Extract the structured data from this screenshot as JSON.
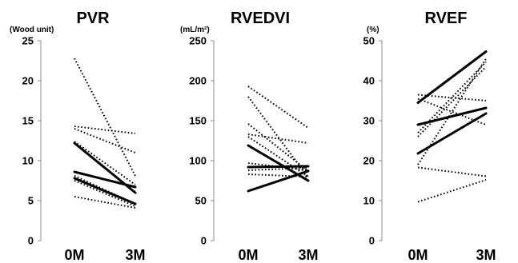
{
  "chart_data": [
    {
      "type": "line",
      "title": "PVR",
      "ylabel": "(Wood unit)",
      "categories": [
        "0M",
        "3M"
      ],
      "ylim": [
        0,
        25
      ],
      "yticks": [
        0,
        5,
        10,
        15,
        20,
        25
      ],
      "grid": false,
      "solid_series": [
        {
          "values": [
            12.2,
            6.0
          ]
        },
        {
          "values": [
            8.6,
            6.7
          ]
        },
        {
          "values": [
            7.8,
            4.6
          ]
        }
      ],
      "dotted_series": [
        {
          "values": [
            22.8,
            8.1
          ]
        },
        {
          "values": [
            14.3,
            13.4
          ]
        },
        {
          "values": [
            14.0,
            11.0
          ]
        },
        {
          "values": [
            12.4,
            7.0
          ]
        },
        {
          "values": [
            8.1,
            4.6
          ]
        },
        {
          "values": [
            7.5,
            4.3
          ]
        },
        {
          "values": [
            5.5,
            4.1
          ]
        }
      ]
    },
    {
      "type": "line",
      "title": "RVEDVI",
      "ylabel": "(mL/m²)",
      "categories": [
        "0M",
        "3M"
      ],
      "ylim": [
        0,
        250
      ],
      "yticks": [
        0,
        50,
        100,
        150,
        200,
        250
      ],
      "grid": false,
      "solid_series": [
        {
          "values": [
            119,
            75
          ]
        },
        {
          "values": [
            92,
            93
          ]
        },
        {
          "values": [
            62,
            87
          ]
        }
      ],
      "dotted_series": [
        {
          "values": [
            193,
            141
          ]
        },
        {
          "values": [
            180,
            79
          ]
        },
        {
          "values": [
            146,
            87
          ]
        },
        {
          "values": [
            133,
            122
          ]
        },
        {
          "values": [
            130,
            80
          ]
        },
        {
          "values": [
            97,
            88
          ]
        },
        {
          "values": [
            88,
            91
          ]
        },
        {
          "values": [
            83,
            80
          ]
        }
      ]
    },
    {
      "type": "line",
      "title": "RVEF",
      "ylabel": "(%)",
      "categories": [
        "0M",
        "3M"
      ],
      "ylim": [
        0,
        50
      ],
      "yticks": [
        0,
        10,
        20,
        30,
        40,
        50
      ],
      "grid": false,
      "solid_series": [
        {
          "values": [
            34.5,
            47.3
          ]
        },
        {
          "values": [
            29.0,
            33.2
          ]
        },
        {
          "values": [
            21.8,
            31.8
          ]
        }
      ],
      "dotted_series": [
        {
          "values": [
            36.5,
            35.0
          ]
        },
        {
          "values": [
            35.5,
            29.0
          ]
        },
        {
          "values": [
            27.0,
            44.7
          ]
        },
        {
          "values": [
            26.0,
            43.5
          ]
        },
        {
          "values": [
            19.0,
            45.5
          ]
        },
        {
          "values": [
            18.3,
            16.1
          ]
        },
        {
          "values": [
            9.7,
            15.2
          ]
        }
      ]
    }
  ]
}
